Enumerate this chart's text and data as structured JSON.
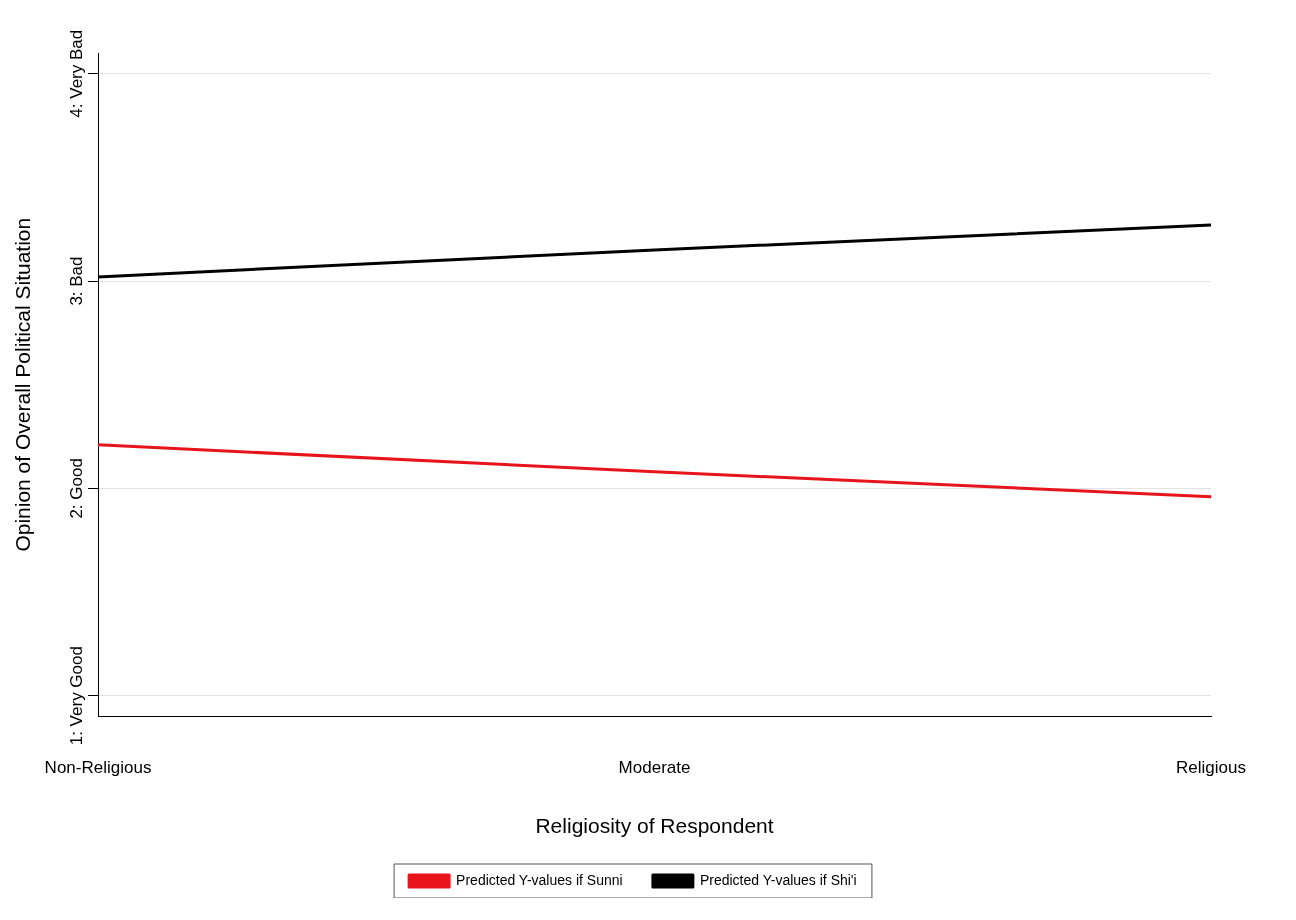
{
  "chart_data": {
    "type": "line",
    "xlabel": "Religiosity of Respondent",
    "ylabel": "Opinion of Overall Political Situation",
    "categories": [
      "Non-Religious",
      "Moderate",
      "Religious"
    ],
    "series": [
      {
        "name": "Predicted Y-values if Sunni",
        "color": "#e8141c",
        "values": [
          2.21,
          2.08,
          1.96
        ]
      },
      {
        "name": "Predicted Y-values if Shi'i",
        "color": "#000000",
        "values": [
          3.02,
          3.15,
          3.27
        ]
      }
    ],
    "ylim": [
      0.9,
      4.1
    ],
    "yticks": [
      {
        "value": 1,
        "label": "1: Very Good"
      },
      {
        "value": 2,
        "label": "2: Good"
      },
      {
        "value": 3,
        "label": "3: Bad"
      },
      {
        "value": 4,
        "label": "4: Very Bad"
      }
    ],
    "grid": "y",
    "legend": "bottom",
    "marker": "none",
    "line_style": "solid"
  }
}
